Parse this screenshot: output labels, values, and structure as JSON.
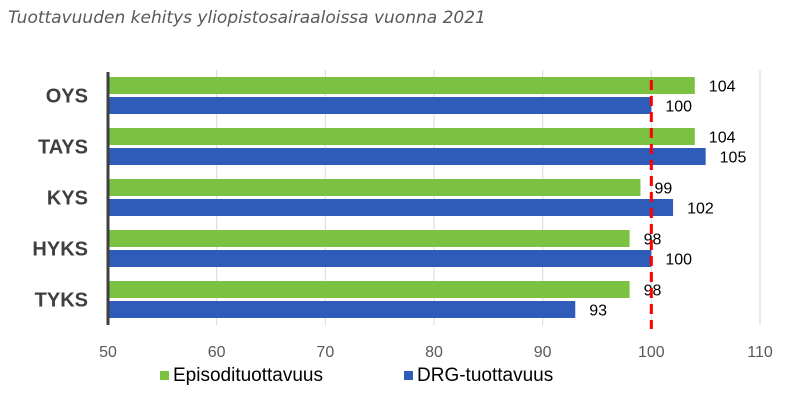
{
  "chart_data": {
    "type": "bar",
    "orientation": "horizontal",
    "title": "Tuottavuuden kehitys yliopistosairaaloissa vuonna 2021",
    "categories": [
      "OYS",
      "TAYS",
      "KYS",
      "HYKS",
      "TYKS"
    ],
    "series": [
      {
        "name": "Episodituottavuus",
        "values": [
          104,
          104,
          99,
          98,
          98
        ],
        "color": "#7bc142"
      },
      {
        "name": "DRG-tuottavuus",
        "values": [
          100,
          105,
          102,
          100,
          93
        ],
        "color": "#2e5cb8"
      }
    ],
    "xlim": [
      50,
      110
    ],
    "xticks": [
      50,
      60,
      70,
      80,
      90,
      100,
      110
    ],
    "reference_line": {
      "value": 100,
      "color": "#ff0000",
      "style": "dashed"
    },
    "grid": "vertical",
    "legend": "bottom"
  }
}
